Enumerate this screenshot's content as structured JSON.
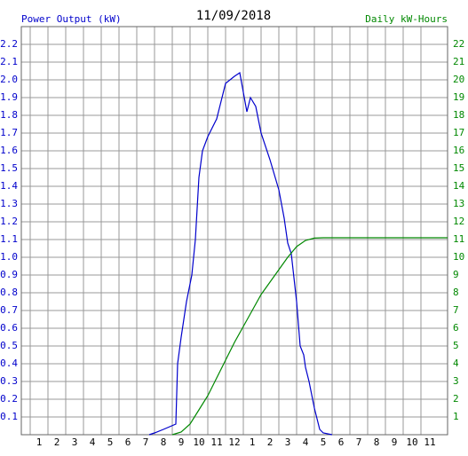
{
  "chart_data": {
    "type": "line",
    "title": "11/09/2018",
    "ylabel": "Power Output (kW)",
    "y2label": "Daily kW-Hours",
    "xlim": [
      0,
      24
    ],
    "xticks": [
      {
        "value": 1,
        "label": "1"
      },
      {
        "value": 2,
        "label": "2"
      },
      {
        "value": 3,
        "label": "3"
      },
      {
        "value": 4,
        "label": "4"
      },
      {
        "value": 5,
        "label": "5"
      },
      {
        "value": 6,
        "label": "6"
      },
      {
        "value": 7,
        "label": "7"
      },
      {
        "value": 8,
        "label": "8"
      },
      {
        "value": 9,
        "label": "9"
      },
      {
        "value": 10,
        "label": "10"
      },
      {
        "value": 11,
        "label": "11"
      },
      {
        "value": 12,
        "label": "12"
      },
      {
        "value": 13,
        "label": "1"
      },
      {
        "value": 14,
        "label": "2"
      },
      {
        "value": 15,
        "label": "3"
      },
      {
        "value": 16,
        "label": "4"
      },
      {
        "value": 17,
        "label": "5"
      },
      {
        "value": 18,
        "label": "6"
      },
      {
        "value": 19,
        "label": "7"
      },
      {
        "value": 20,
        "label": "8"
      },
      {
        "value": 21,
        "label": "9"
      },
      {
        "value": 22,
        "label": "10"
      },
      {
        "value": 23,
        "label": "11"
      }
    ],
    "ylim": [
      0,
      2.3
    ],
    "yticks": [
      0.1,
      0.2,
      0.3,
      0.4,
      0.5,
      0.6,
      0.7,
      0.8,
      0.9,
      {
        "value": 1,
        "label": "1.0"
      },
      1.1,
      1.2,
      1.3,
      1.4,
      1.5,
      1.6,
      1.7,
      1.8,
      1.9,
      {
        "value": 2,
        "label": "2.0"
      },
      2.1,
      2.2
    ],
    "y2lim": [
      0,
      23
    ],
    "y2ticks": [
      1,
      2,
      3,
      4,
      5,
      6,
      7,
      8,
      9,
      10,
      11,
      12,
      13,
      14,
      15,
      16,
      17,
      18,
      19,
      20,
      21,
      22
    ],
    "grid": true,
    "series": [
      {
        "color": "#0000cc",
        "axis": "y",
        "x": [
          7.2,
          7.5,
          8,
          8.7,
          8.8,
          9,
          9.3,
          9.6,
          9.8,
          10,
          10.2,
          10.5,
          11,
          11.3,
          11.5,
          12,
          12.3,
          12.5,
          12.7,
          12.9,
          13.2,
          13.5,
          14,
          14.5,
          14.8,
          15,
          15.2,
          15.5,
          15.7,
          15.9,
          16,
          16.2,
          16.5,
          16.8,
          17,
          17.5
        ],
        "values": [
          0,
          0.01,
          0.03,
          0.06,
          0.4,
          0.55,
          0.75,
          0.9,
          1.1,
          1.45,
          1.6,
          1.68,
          1.78,
          1.9,
          1.98,
          2.02,
          2.04,
          1.93,
          1.82,
          1.9,
          1.85,
          1.7,
          1.55,
          1.38,
          1.22,
          1.08,
          1.02,
          0.75,
          0.5,
          0.45,
          0.38,
          0.3,
          0.15,
          0.03,
          0.01,
          0
        ]
      },
      {
        "color": "#008800",
        "axis": "y2",
        "x": [
          8.5,
          9,
          9.5,
          10,
          10.5,
          11,
          11.5,
          12,
          12.5,
          13,
          13.5,
          14,
          14.5,
          15,
          15.5,
          16,
          16.5,
          17,
          24
        ],
        "values": [
          0,
          0.15,
          0.6,
          1.4,
          2.2,
          3.2,
          4.2,
          5.2,
          6.1,
          7.0,
          7.9,
          8.6,
          9.3,
          10.0,
          10.6,
          10.95,
          11.08,
          11.1,
          11.1
        ]
      }
    ]
  }
}
